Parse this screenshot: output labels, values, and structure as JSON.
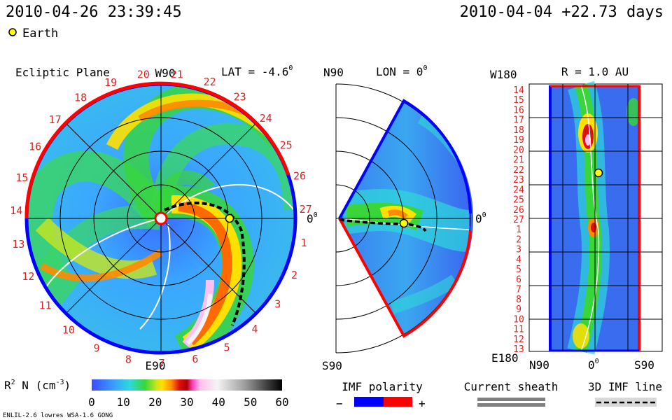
{
  "header": {
    "datetime": "2010-04-26 23:39:45",
    "epoch": "2010-04-04 +22.73 days",
    "earth_label": "Earth"
  },
  "ecliptic": {
    "title": "Ecliptic Plane",
    "top_label": "W90",
    "bottom_label": "E90",
    "right_label": "0",
    "right_label_sup": "0",
    "lat_label": "LAT = -4.6",
    "lat_sup": "0",
    "carrington_ticks": [
      "20",
      "21",
      "22",
      "23",
      "24",
      "25",
      "26",
      "27",
      "1",
      "2",
      "3",
      "4",
      "5",
      "6",
      "7",
      "8",
      "9",
      "10",
      "11",
      "12",
      "13",
      "14",
      "15",
      "16",
      "17",
      "18",
      "19"
    ]
  },
  "meridional": {
    "top_label": "N90",
    "bottom_label": "S90",
    "lon_label": "LON = 0",
    "lon_sup": "0",
    "right_label": "0",
    "right_label_sup": "0"
  },
  "sphere": {
    "top_left_label": "W180",
    "bottom_left_label": "E180",
    "r_label": "R = 1.0 AU",
    "x_labels": [
      "N90",
      "0",
      "S90"
    ],
    "x_label_mid_sup": "0",
    "rows": [
      "14",
      "15",
      "16",
      "17",
      "18",
      "19",
      "20",
      "21",
      "22",
      "23",
      "24",
      "25",
      "26",
      "27",
      "1",
      "2",
      "3",
      "4",
      "5",
      "6",
      "7",
      "8",
      "9",
      "10",
      "11",
      "12",
      "13"
    ]
  },
  "colorbar": {
    "label": "R",
    "label_sup": "2",
    "label_rest": " N (cm",
    "label_unit_sup": "-3",
    "label_close": ")",
    "ticks": [
      "0",
      "10",
      "20",
      "30",
      "40",
      "50",
      "60"
    ]
  },
  "legend": {
    "imf_title": "IMF polarity",
    "minus": "−",
    "plus": "+",
    "sheath_title": "Current sheath",
    "imf_line_title": "3D IMF line"
  },
  "footer": {
    "model": "ENLIL-2.6 lowres WSA-1.6 GONG"
  },
  "colors": {
    "negative_polarity": "#0000ff",
    "positive_polarity": "#ff0000",
    "earth": "#ffff00"
  },
  "chart_data": {
    "type": "heatmap",
    "title": "",
    "quantity": "R2 N (cm-3)",
    "colorbar_range": [
      0,
      60
    ],
    "colorbar_ticks": [
      0,
      10,
      20,
      30,
      40,
      50,
      60
    ],
    "earth_position": {
      "panel": "ecliptic",
      "lon_deg": 0,
      "r_au": 1.0
    },
    "panels": [
      "Ecliptic Plane",
      "LON = 0",
      "R = 1.0 AU"
    ]
  }
}
